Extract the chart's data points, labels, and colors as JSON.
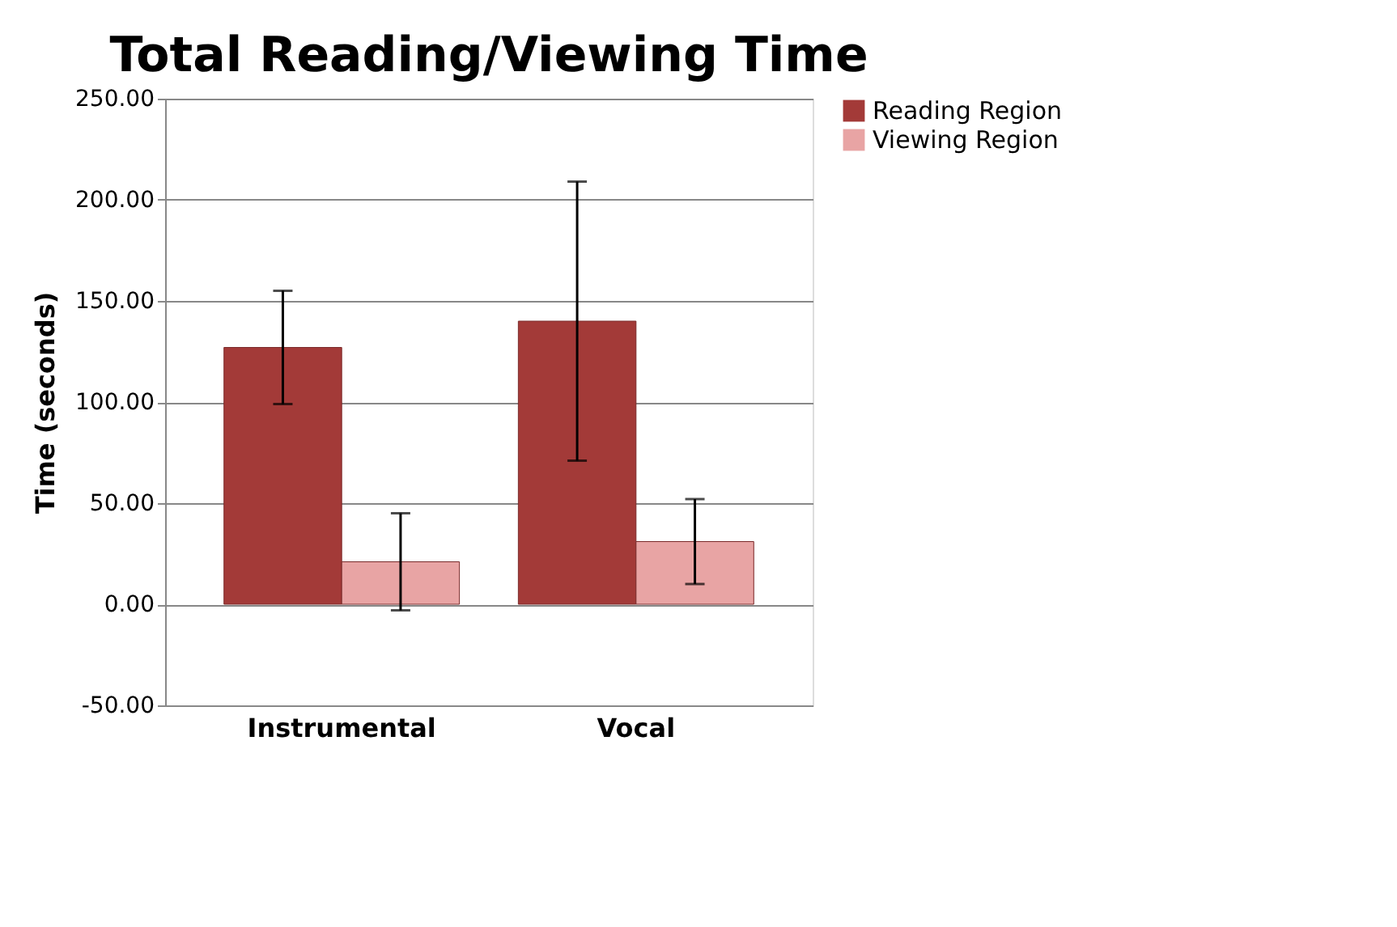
{
  "chart_data": {
    "type": "bar",
    "title": "Total Reading/Viewing Time",
    "ylabel": "Time (seconds)",
    "categories": [
      "Instrumental",
      "Vocal"
    ],
    "series": [
      {
        "name": "Reading Region",
        "color": "#a33a38",
        "values": [
          127,
          140
        ],
        "errors": [
          28,
          69
        ]
      },
      {
        "name": "Viewing Region",
        "color": "#e8a4a4",
        "values": [
          21,
          31
        ],
        "errors": [
          24,
          21
        ]
      }
    ],
    "ylim": [
      -50,
      250
    ],
    "yticks": [
      {
        "value": -50,
        "label": "-50.00"
      },
      {
        "value": 0,
        "label": "0.00"
      },
      {
        "value": 50,
        "label": "50.00"
      },
      {
        "value": 100,
        "label": "100.00"
      },
      {
        "value": 150,
        "label": "150.00"
      },
      {
        "value": 200,
        "label": "200.00"
      },
      {
        "value": 250,
        "label": "250.00"
      }
    ],
    "grid": "y",
    "legend": "right"
  }
}
